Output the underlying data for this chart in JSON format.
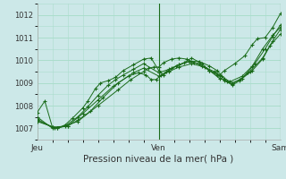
{
  "title": "",
  "xlabel": "Pression niveau de la mer( hPa )",
  "bg_color": "#cce8e8",
  "grid_color": "#aaddcc",
  "line_color": "#1a6b1a",
  "marker_color": "#1a6b1a",
  "ylim": [
    1006.5,
    1012.5
  ],
  "xlim": [
    0,
    48
  ],
  "yticks": [
    1007,
    1008,
    1009,
    1010,
    1011,
    1012
  ],
  "xtick_positions": [
    0,
    24,
    48
  ],
  "xtick_labels": [
    "Jeu",
    "Ven",
    "Sam"
  ],
  "series": [
    [
      0.0,
      1007.7,
      1.5,
      1008.2,
      3.0,
      1007.05,
      4.0,
      1007.0,
      5.5,
      1007.15,
      7.0,
      1007.45,
      9.0,
      1007.9,
      10.0,
      1008.2,
      11.5,
      1008.75,
      12.5,
      1009.0,
      14.0,
      1009.1,
      15.5,
      1009.25,
      17.0,
      1009.55,
      19.0,
      1009.8,
      21.0,
      1010.05,
      22.5,
      1010.1,
      24.0,
      1009.55,
      25.0,
      1009.35,
      26.0,
      1009.55,
      27.5,
      1009.75,
      29.0,
      1009.9,
      30.5,
      1010.1,
      32.5,
      1009.85,
      34.0,
      1009.55,
      36.0,
      1009.35,
      37.0,
      1009.55,
      39.0,
      1009.85,
      41.0,
      1010.2,
      42.5,
      1010.7,
      43.5,
      1010.95,
      45.0,
      1011.0,
      46.5,
      1011.45,
      48.0,
      1012.05
    ],
    [
      0.0,
      1007.5,
      3.0,
      1007.0,
      5.5,
      1007.1,
      8.0,
      1007.5,
      10.0,
      1007.95,
      12.0,
      1008.45,
      14.0,
      1008.9,
      15.5,
      1009.15,
      17.0,
      1009.35,
      19.0,
      1009.6,
      21.0,
      1009.85,
      24.0,
      1009.45,
      26.0,
      1009.6,
      28.0,
      1009.8,
      30.0,
      1009.95,
      32.0,
      1009.85,
      34.0,
      1009.55,
      36.0,
      1009.2,
      38.0,
      1009.05,
      40.5,
      1009.3,
      42.5,
      1009.75,
      44.5,
      1010.5,
      46.5,
      1011.1,
      48.0,
      1011.45
    ],
    [
      0.0,
      1007.4,
      3.0,
      1007.05,
      6.0,
      1007.1,
      8.0,
      1007.35,
      10.5,
      1007.75,
      13.0,
      1008.35,
      16.0,
      1009.0,
      19.0,
      1009.45,
      21.0,
      1009.65,
      24.0,
      1009.3,
      26.0,
      1009.5,
      28.0,
      1009.7,
      30.5,
      1009.85,
      33.0,
      1009.7,
      35.0,
      1009.5,
      37.0,
      1009.2,
      38.5,
      1009.0,
      40.5,
      1009.2,
      42.5,
      1009.55,
      44.5,
      1010.05,
      46.0,
      1010.65,
      48.0,
      1011.15
    ],
    [
      0.0,
      1007.35,
      3.5,
      1007.0,
      6.0,
      1007.1,
      9.0,
      1007.65,
      12.0,
      1008.25,
      15.0,
      1008.85,
      18.0,
      1009.3,
      20.0,
      1009.45,
      21.5,
      1009.35,
      22.5,
      1009.15,
      23.5,
      1009.15,
      24.5,
      1009.35,
      25.5,
      1009.5,
      26.5,
      1009.65,
      28.0,
      1009.8,
      30.0,
      1009.95,
      32.0,
      1009.95,
      34.0,
      1009.75,
      35.5,
      1009.55,
      36.5,
      1009.3,
      37.5,
      1009.05,
      38.5,
      1008.9,
      40.0,
      1009.1,
      41.5,
      1009.45,
      43.0,
      1009.85,
      45.0,
      1010.5,
      46.5,
      1011.05,
      48.0,
      1011.55
    ],
    [
      0.0,
      1007.3,
      4.0,
      1007.0,
      8.0,
      1007.3,
      12.0,
      1008.0,
      16.0,
      1008.7,
      18.5,
      1009.15,
      21.0,
      1009.5,
      22.0,
      1009.65,
      23.0,
      1009.7,
      24.0,
      1009.7,
      25.0,
      1009.9,
      26.5,
      1010.05,
      28.0,
      1010.1,
      29.5,
      1010.05,
      31.0,
      1009.9,
      32.5,
      1009.75,
      34.0,
      1009.55,
      35.5,
      1009.35,
      37.0,
      1009.1,
      38.5,
      1008.95,
      40.0,
      1009.15,
      42.0,
      1009.5,
      44.5,
      1010.1,
      46.5,
      1010.85,
      48.0,
      1011.35
    ]
  ],
  "vline_positions": [
    24,
    48
  ],
  "xlabel_fontsize": 7.5,
  "ytick_fontsize": 6,
  "xtick_fontsize": 6.5
}
